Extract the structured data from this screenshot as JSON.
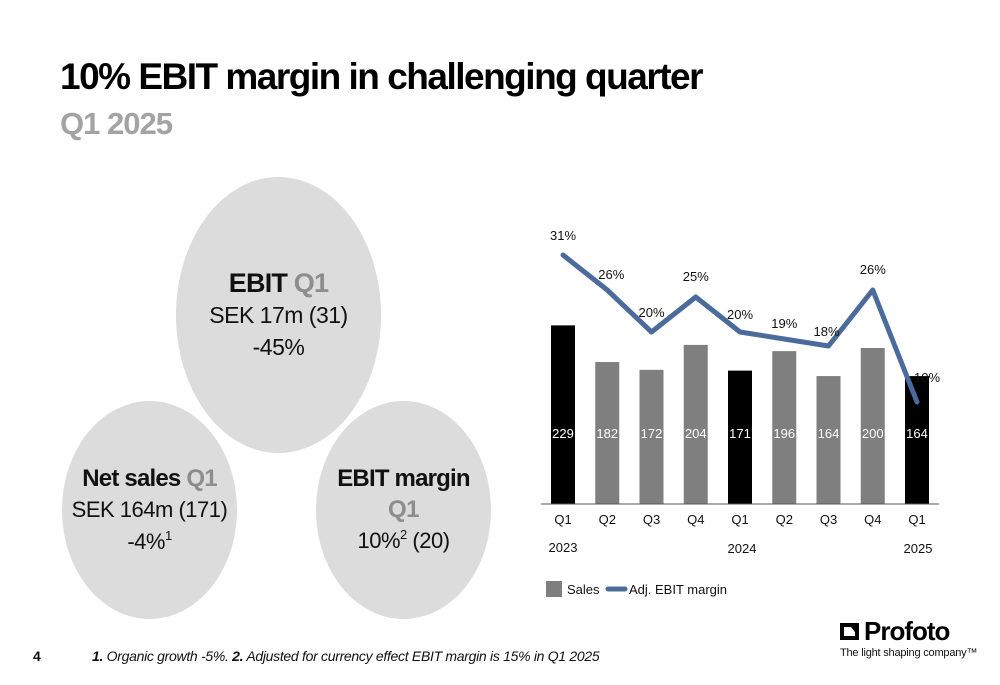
{
  "title": "10% EBIT margin in challenging quarter",
  "subtitle": "Q1 2025",
  "kpis": {
    "ebit": {
      "label": "EBIT",
      "period": "Q1",
      "value": "SEK 17m (31)",
      "change": "-45%"
    },
    "net_sales": {
      "label": "Net sales",
      "period": "Q1",
      "value": "SEK 164m (171)",
      "change": "-4%",
      "footnote_ref": "1"
    },
    "ebit_margin": {
      "label": "EBIT margin",
      "period": "Q1",
      "value": "10%",
      "footnote_ref": "2",
      "previous": "(20)"
    }
  },
  "chart_data": {
    "type": "bar",
    "categories": [
      "Q1",
      "Q2",
      "Q3",
      "Q4",
      "Q1",
      "Q2",
      "Q3",
      "Q4",
      "Q1"
    ],
    "year_labels": [
      "2023",
      "2024",
      "2025"
    ],
    "series": [
      {
        "name": "Sales",
        "type": "bar",
        "values": [
          229,
          182,
          172,
          204,
          171,
          196,
          164,
          200,
          164
        ],
        "value_labels": [
          "229",
          "182",
          "172",
          "204",
          "171",
          "196",
          "164",
          "200",
          "164"
        ]
      },
      {
        "name": "Adj. EBIT margin",
        "type": "line",
        "values": [
          31,
          26,
          20,
          25,
          20,
          19,
          18,
          26,
          10
        ],
        "value_labels": [
          "31%",
          "26%",
          "20%",
          "25%",
          "20%",
          "19%",
          "18%",
          "26%",
          "10%"
        ]
      }
    ],
    "highlighted_bars": [
      0,
      4,
      8
    ],
    "legend": [
      "Sales",
      "Adj. EBIT margin"
    ],
    "legend_position": "bottom-left",
    "title": "",
    "xlabel": "",
    "ylabel": "",
    "colors": {
      "bar_highlight": "#000000",
      "bar": "#7f7f7f",
      "line": "#4a6b9b",
      "axis": "#555555"
    }
  },
  "footnotes": {
    "page_number": "4",
    "note1_ref": "1.",
    "note1_text": " Organic growth -5%. ",
    "note2_ref": "2.",
    "note2_text": " Adjusted for currency effect EBIT margin is 15% in Q1 2025"
  },
  "logo": {
    "name": "Profoto",
    "tagline": "The light shaping company™"
  }
}
